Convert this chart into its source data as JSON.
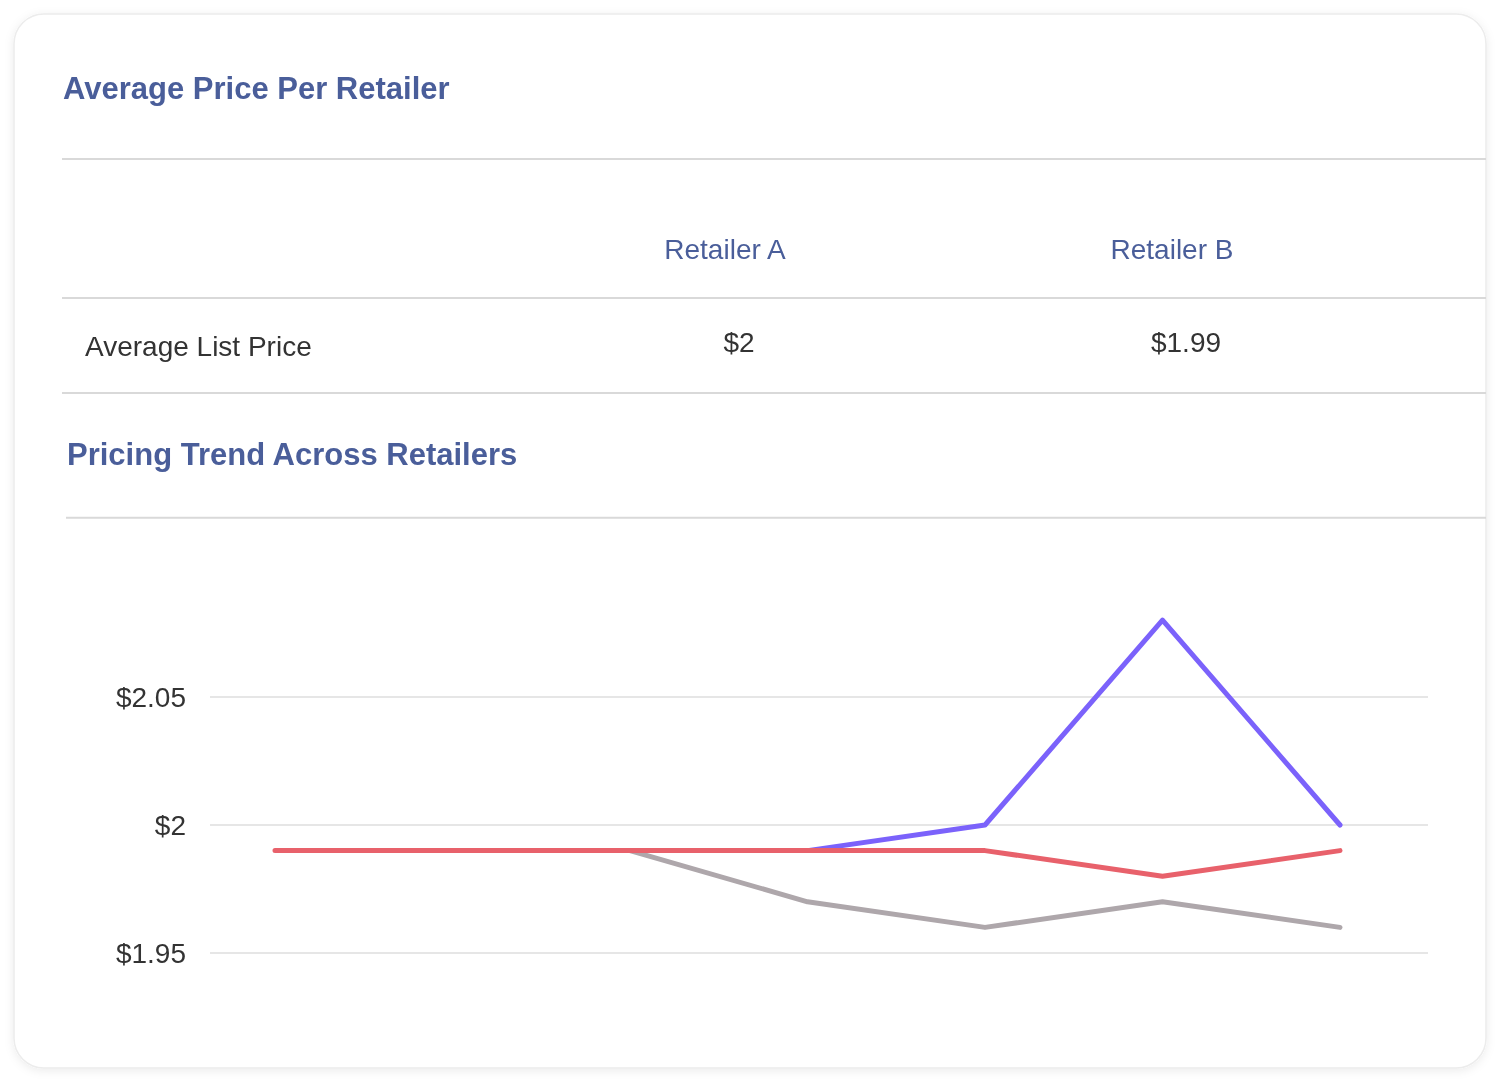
{
  "chart_data": [
    {
      "type": "other",
      "title": "Average Price Per Retailer",
      "categories": [
        "Retailer A",
        "Retailer B"
      ],
      "series": [
        {
          "name": "Average List Price",
          "values": [
            2,
            1.99
          ],
          "value_labels": [
            "$2",
            "$1.99"
          ]
        }
      ]
    },
    {
      "type": "line",
      "title": "Pricing Trend Across Retailers",
      "categories": [
        null,
        null,
        null,
        null,
        null,
        null,
        null
      ],
      "series": [
        {
          "color": "#aea7ab",
          "values": [
            null,
            null,
            1.99,
            1.97,
            1.96,
            1.97,
            1.96
          ]
        },
        {
          "color": "#7b62fb",
          "values": [
            null,
            null,
            null,
            1.99,
            2,
            2.08,
            2
          ]
        },
        {
          "color": "#e8616b",
          "values": [
            1.99,
            1.99,
            1.99,
            1.99,
            1.99,
            1.98,
            1.99
          ]
        }
      ],
      "ylim": [
        1.95,
        2.12
      ],
      "yticks": [
        {
          "value": 1.95,
          "label": "$1.95"
        },
        {
          "value": 2,
          "label": "$2"
        },
        {
          "value": 2.05,
          "label": "$2.05"
        }
      ],
      "grid": "y",
      "tick_labels": "y"
    }
  ]
}
